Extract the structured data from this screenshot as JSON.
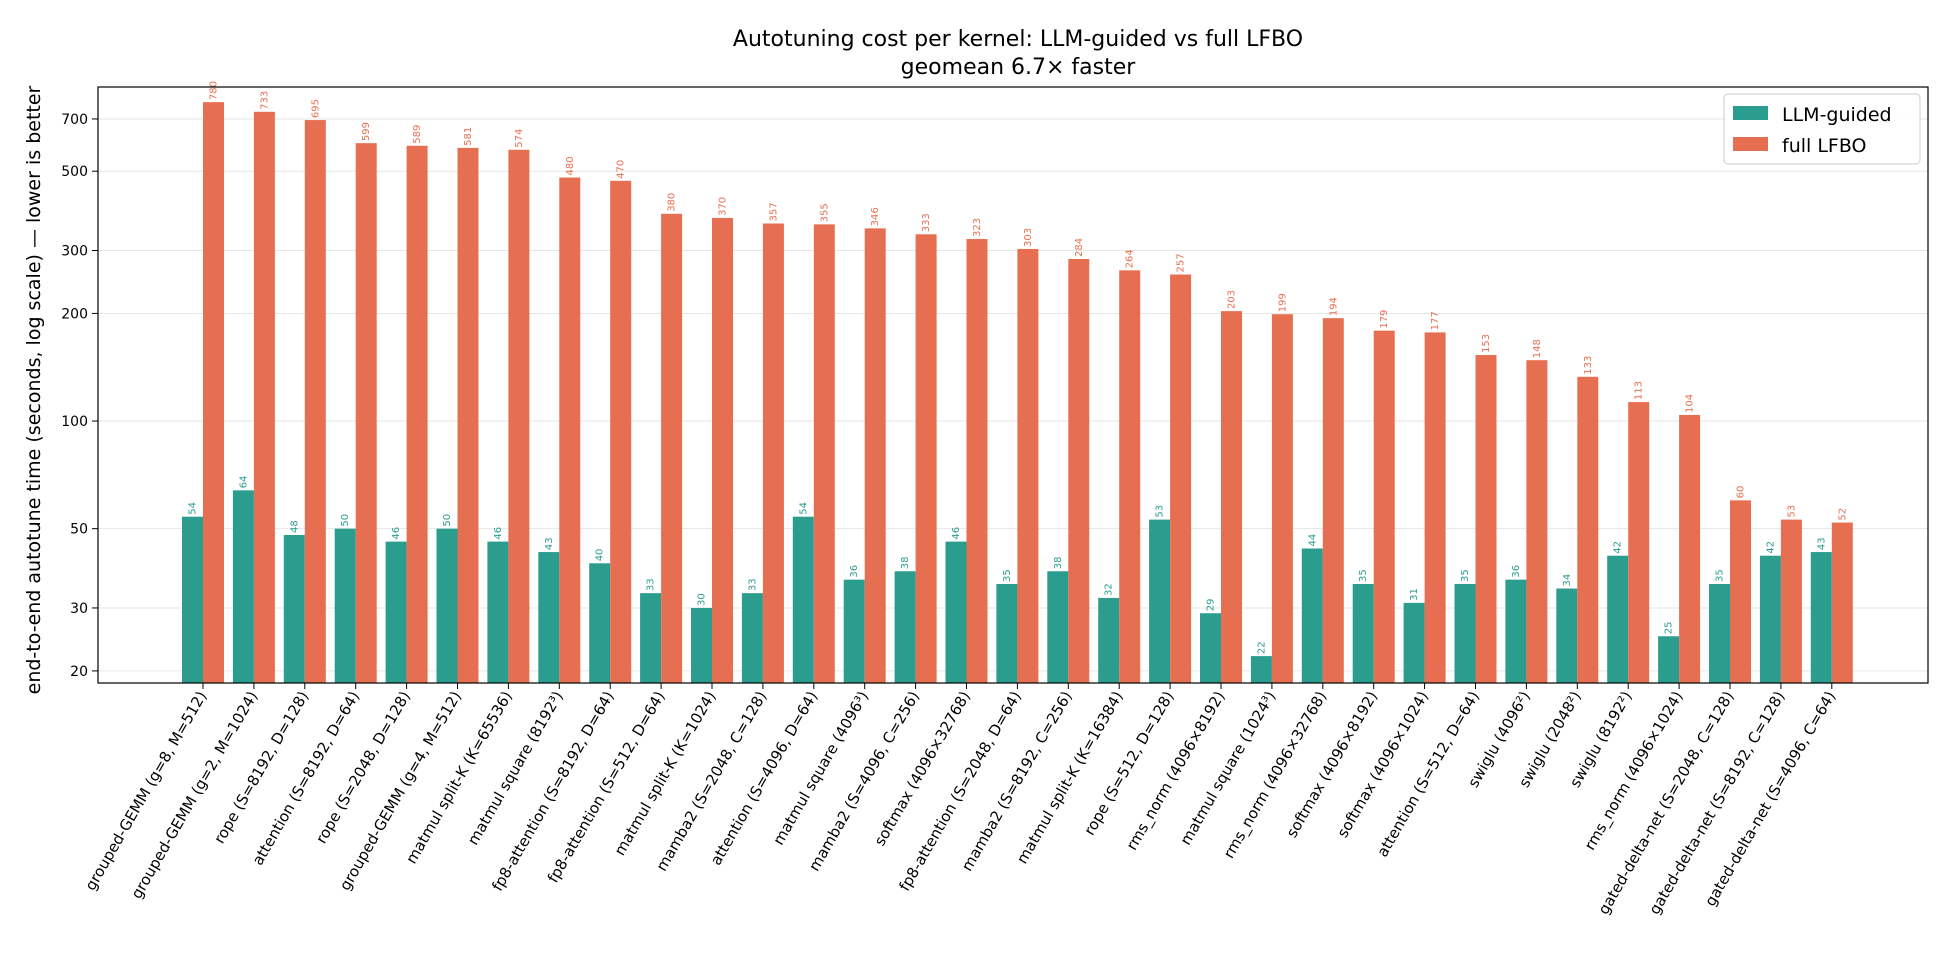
{
  "chart_data": {
    "type": "bar",
    "title": "Autotuning cost per kernel: LLM-guided vs full LFBO",
    "subtitle": "geomean 6.7× faster",
    "xlabel": "",
    "ylabel": "end-to-end autotune time (seconds, log scale) — lower is better",
    "yscale": "log",
    "ylim": [
      18.5,
      860
    ],
    "yticks": [
      20,
      30,
      50,
      100,
      200,
      300,
      500,
      700
    ],
    "grid": "horizontal",
    "legend_position": "top-right",
    "colors": {
      "LLM-guided": "#2a9d8f",
      "full LFBO": "#e76f51"
    },
    "categories": [
      "grouped-GEMM (g=8, M=512)",
      "grouped-GEMM (g=2, M=1024)",
      "rope (S=8192, D=128)",
      "attention (S=8192, D=64)",
      "rope (S=2048, D=128)",
      "grouped-GEMM (g=4, M=512)",
      "matmul split-K (K=65536)",
      "matmul square (8192³)",
      "fp8-attention (S=8192, D=64)",
      "fp8-attention (S=512, D=64)",
      "matmul split-K (K=1024)",
      "mamba2 (S=2048, C=128)",
      "attention (S=4096, D=64)",
      "matmul square (4096³)",
      "mamba2 (S=4096, C=256)",
      "softmax (4096×32768)",
      "fp8-attention (S=2048, D=64)",
      "mamba2 (S=8192, C=256)",
      "matmul split-K (K=16384)",
      "rope (S=512, D=128)",
      "rms_norm (4096×8192)",
      "matmul square (1024³)",
      "rms_norm (4096×32768)",
      "softmax (4096×8192)",
      "softmax (4096×1024)",
      "attention (S=512, D=64)",
      "swiglu (4096²)",
      "swiglu (2048²)",
      "swiglu (8192²)",
      "rms_norm (4096×1024)",
      "gated-delta-net (S=2048, C=128)",
      "gated-delta-net (S=8192, C=128)",
      "gated-delta-net (S=4096, C=64)"
    ],
    "series": [
      {
        "name": "LLM-guided",
        "values": [
          54,
          64,
          48,
          50,
          46,
          50,
          46,
          43,
          40,
          33,
          30,
          33,
          54,
          36,
          38,
          46,
          35,
          38,
          32,
          53,
          29,
          22,
          44,
          35,
          31,
          35,
          36,
          34,
          42,
          25,
          35,
          42,
          43
        ]
      },
      {
        "name": "full LFBO",
        "values": [
          780,
          733,
          695,
          599,
          589,
          581,
          574,
          480,
          470,
          380,
          370,
          357,
          355,
          346,
          333,
          323,
          303,
          284,
          264,
          257,
          203,
          199,
          194,
          179,
          177,
          153,
          148,
          133,
          113,
          104,
          60,
          53,
          52
        ]
      }
    ]
  }
}
